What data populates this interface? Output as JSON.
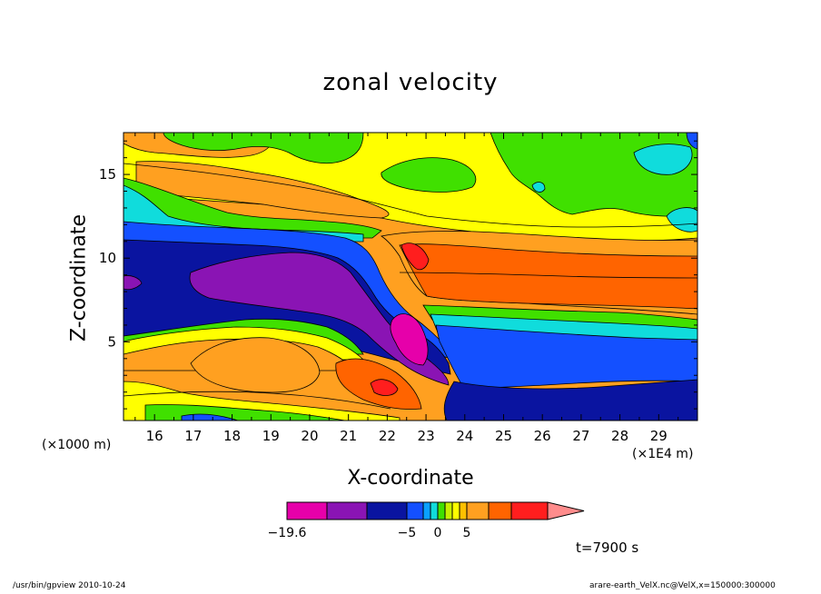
{
  "chart_data": {
    "type": "heatmap",
    "title": "zonal velocity",
    "xlabel": "X-coordinate",
    "ylabel": "Z-coordinate",
    "x_unit_left": "(×1000 m)",
    "x_unit_right": "(×1E4 m)",
    "xlim": [
      15.2,
      30.0
    ],
    "ylim": [
      0.3,
      17.5
    ],
    "x_ticks": [
      16,
      17,
      18,
      19,
      20,
      21,
      22,
      23,
      24,
      25,
      26,
      27,
      28,
      29
    ],
    "y_ticks": [
      5,
      10,
      15
    ],
    "colorbar": {
      "levels": [
        -19.6,
        -15,
        -10,
        -5,
        -3,
        -1,
        0,
        1,
        2,
        3,
        5,
        10,
        15,
        20
      ],
      "colors": [
        "#e600aa",
        "#8a14b4",
        "#0a14a0",
        "#1450ff",
        "#0aa0ff",
        "#10dcdc",
        "#40e000",
        "#c8f000",
        "#ffff00",
        "#ffc000",
        "#ffa020",
        "#ff6400",
        "#ff1e1e",
        "#ff8c8c"
      ],
      "tick_labels": [
        "−19.6",
        "−5",
        "0",
        "5"
      ],
      "tick_values": [
        -19.6,
        -5,
        0,
        5
      ]
    },
    "time_label": "t=7900 s",
    "footer_left": "/usr/bin/gpview  2010-10-24",
    "footer_right": "arare-earth_VelX.nc@VelX,x=150000:300000"
  }
}
